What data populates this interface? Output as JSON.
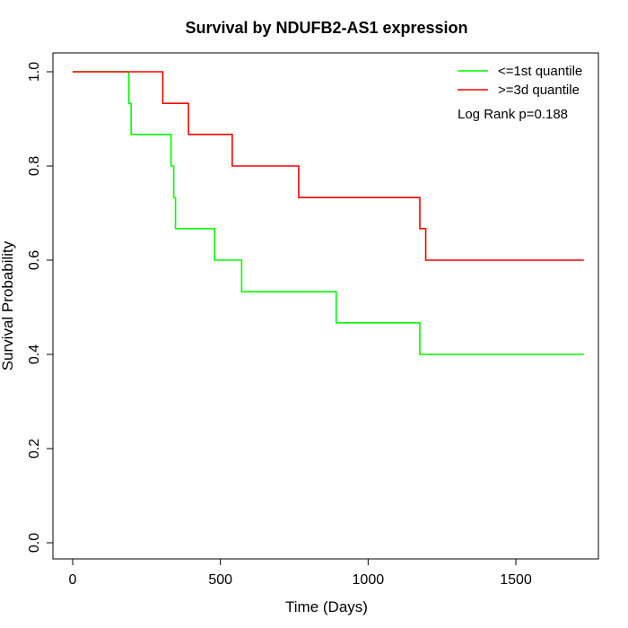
{
  "chart_data": {
    "type": "line",
    "subtype": "step",
    "title": "Survival by NDUFB2-AS1 expression",
    "xlabel": "Time (Days)",
    "ylabel": "Survival Probability",
    "xlim": [
      0,
      1780
    ],
    "ylim": [
      0,
      1.0
    ],
    "xticks": [
      0,
      500,
      1000,
      1500
    ],
    "xtick_labels": [
      "0",
      "500",
      "1000",
      "1500"
    ],
    "yticks": [
      0.0,
      0.2,
      0.4,
      0.6,
      0.8,
      1.0
    ],
    "ytick_labels": [
      "0.0",
      "0.2",
      "0.4",
      "0.6",
      "0.8",
      "1.0"
    ],
    "grid": false,
    "legend_position": "top-right",
    "annotation": "Log Rank p=0.188",
    "series": [
      {
        "name": "<=1st quantile",
        "color": "#00ff00",
        "x": [
          0,
          190,
          198,
          333,
          342,
          348,
          480,
          572,
          892,
          1175,
          1730
        ],
        "y": [
          1.0,
          0.933,
          0.867,
          0.8,
          0.733,
          0.667,
          0.6,
          0.533,
          0.467,
          0.4,
          0.4
        ]
      },
      {
        "name": ">=3d quantile",
        "color": "#ff0000",
        "x": [
          0,
          305,
          392,
          540,
          765,
          1175,
          1195,
          1730
        ],
        "y": [
          1.0,
          0.933,
          0.867,
          0.8,
          0.733,
          0.667,
          0.6,
          0.6
        ]
      }
    ]
  }
}
